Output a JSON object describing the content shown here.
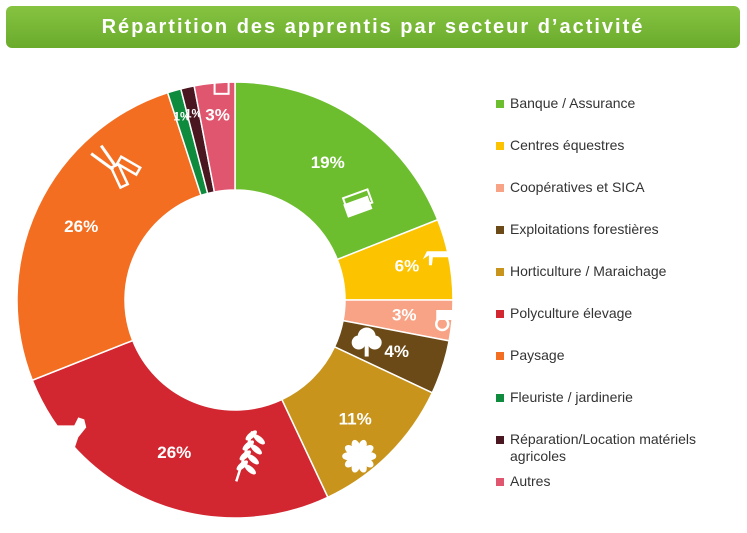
{
  "chart_data": {
    "type": "pie",
    "title": "Répartition des apprentis par secteur d’activité",
    "legend_position": "right",
    "slices": [
      {
        "name": "Banque / Assurance",
        "value": 19,
        "label": "19%",
        "color": "#6cbe2e",
        "icon": "money-stack-icon"
      },
      {
        "name": "Centres équestres",
        "value": 6,
        "label": "6%",
        "color": "#fcc400",
        "icon": "horse-icon"
      },
      {
        "name": "Coopératives et SICA",
        "value": 3,
        "label": "3%",
        "color": "#f8a385",
        "icon": "tractor-icon"
      },
      {
        "name": "Exploitations forestières",
        "value": 4,
        "label": "4%",
        "color": "#6b4a18",
        "icon": "tree-icon"
      },
      {
        "name": "Horticulture / Maraichage",
        "value": 11,
        "label": "11%",
        "color": "#c9941c",
        "icon": "flower-icon"
      },
      {
        "name": "Polyculture élevage",
        "value": 26,
        "label": "26%",
        "color": "#d22630",
        "icon": "cow-wheat-icon"
      },
      {
        "name": "Paysage",
        "value": 26,
        "label": "26%",
        "color": "#f36e21",
        "icon": "pruning-shears-icon"
      },
      {
        "name": "Fleuriste / jardinerie",
        "value": 1,
        "label": "1%",
        "color": "#0f8b3e",
        "icon": ""
      },
      {
        "name": "Réparation/Location matériels agricoles",
        "value": 1,
        "label": "1%",
        "color": "#4a1620",
        "icon": ""
      },
      {
        "name": "Autres",
        "value": 3,
        "label": "3%",
        "color": "#e0566f",
        "icon": "trash-can-icon"
      }
    ]
  }
}
